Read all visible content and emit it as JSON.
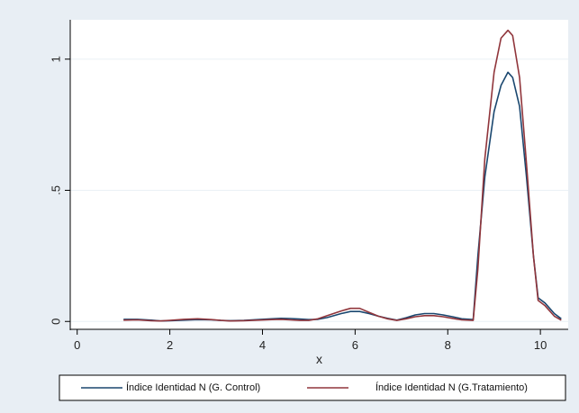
{
  "chart_data": {
    "type": "line",
    "title": "",
    "xlabel": "x",
    "ylabel": "",
    "xlim": [
      -0.15,
      10.6
    ],
    "ylim": [
      -0.03,
      1.15
    ],
    "x_ticks": [
      0,
      2,
      4,
      6,
      8,
      10
    ],
    "x_tick_labels": [
      "0",
      "2",
      "4",
      "6",
      "8",
      "10"
    ],
    "y_ticks": [
      0,
      0.5,
      1
    ],
    "y_tick_labels": [
      "0",
      ".5",
      "1"
    ],
    "grid": "horizontal",
    "legend_position": "bottom",
    "colors": {
      "background": "#e8eef4",
      "plot_background": "#ffffff",
      "grid": "#eaf0f5",
      "control": "#1a476f",
      "treatment": "#90353b"
    },
    "series": [
      {
        "name": "Índice Identidad N (G. Control)",
        "color": "#1a476f",
        "x": [
          1.0,
          1.3,
          1.6,
          1.8,
          2.0,
          2.3,
          2.6,
          2.9,
          3.1,
          3.3,
          3.6,
          3.9,
          4.2,
          4.4,
          4.6,
          4.8,
          5.0,
          5.2,
          5.4,
          5.7,
          5.9,
          6.1,
          6.3,
          6.5,
          6.7,
          6.9,
          7.1,
          7.3,
          7.5,
          7.7,
          7.9,
          8.1,
          8.3,
          8.55,
          8.65,
          8.8,
          9.0,
          9.15,
          9.3,
          9.4,
          9.55,
          9.7,
          9.85,
          9.95,
          10.1,
          10.3,
          10.45
        ],
        "y": [
          0.008,
          0.008,
          0.005,
          0.002,
          0.003,
          0.005,
          0.007,
          0.006,
          0.004,
          0.003,
          0.004,
          0.007,
          0.01,
          0.012,
          0.011,
          0.009,
          0.007,
          0.008,
          0.015,
          0.03,
          0.038,
          0.038,
          0.03,
          0.02,
          0.012,
          0.005,
          0.014,
          0.025,
          0.03,
          0.03,
          0.025,
          0.018,
          0.01,
          0.007,
          0.25,
          0.55,
          0.8,
          0.9,
          0.95,
          0.93,
          0.82,
          0.55,
          0.25,
          0.09,
          0.07,
          0.03,
          0.01
        ]
      },
      {
        "name": "Índice Identidad N (G.Tratamiento)",
        "color": "#90353b",
        "x": [
          1.0,
          1.3,
          1.6,
          1.8,
          2.0,
          2.3,
          2.6,
          2.9,
          3.1,
          3.3,
          3.6,
          3.9,
          4.2,
          4.4,
          4.6,
          4.8,
          5.0,
          5.2,
          5.4,
          5.7,
          5.9,
          6.1,
          6.3,
          6.5,
          6.7,
          6.9,
          7.1,
          7.3,
          7.5,
          7.7,
          7.9,
          8.1,
          8.3,
          8.55,
          8.65,
          8.8,
          9.0,
          9.15,
          9.3,
          9.4,
          9.55,
          9.7,
          9.85,
          9.95,
          10.1,
          10.3,
          10.45
        ],
        "y": [
          0.005,
          0.006,
          0.003,
          0.002,
          0.004,
          0.008,
          0.01,
          0.007,
          0.004,
          0.002,
          0.003,
          0.005,
          0.007,
          0.008,
          0.006,
          0.004,
          0.004,
          0.01,
          0.022,
          0.04,
          0.05,
          0.05,
          0.035,
          0.02,
          0.01,
          0.004,
          0.01,
          0.018,
          0.022,
          0.022,
          0.018,
          0.012,
          0.006,
          0.004,
          0.2,
          0.62,
          0.95,
          1.08,
          1.11,
          1.09,
          0.93,
          0.6,
          0.25,
          0.08,
          0.06,
          0.02,
          0.005
        ]
      }
    ]
  }
}
